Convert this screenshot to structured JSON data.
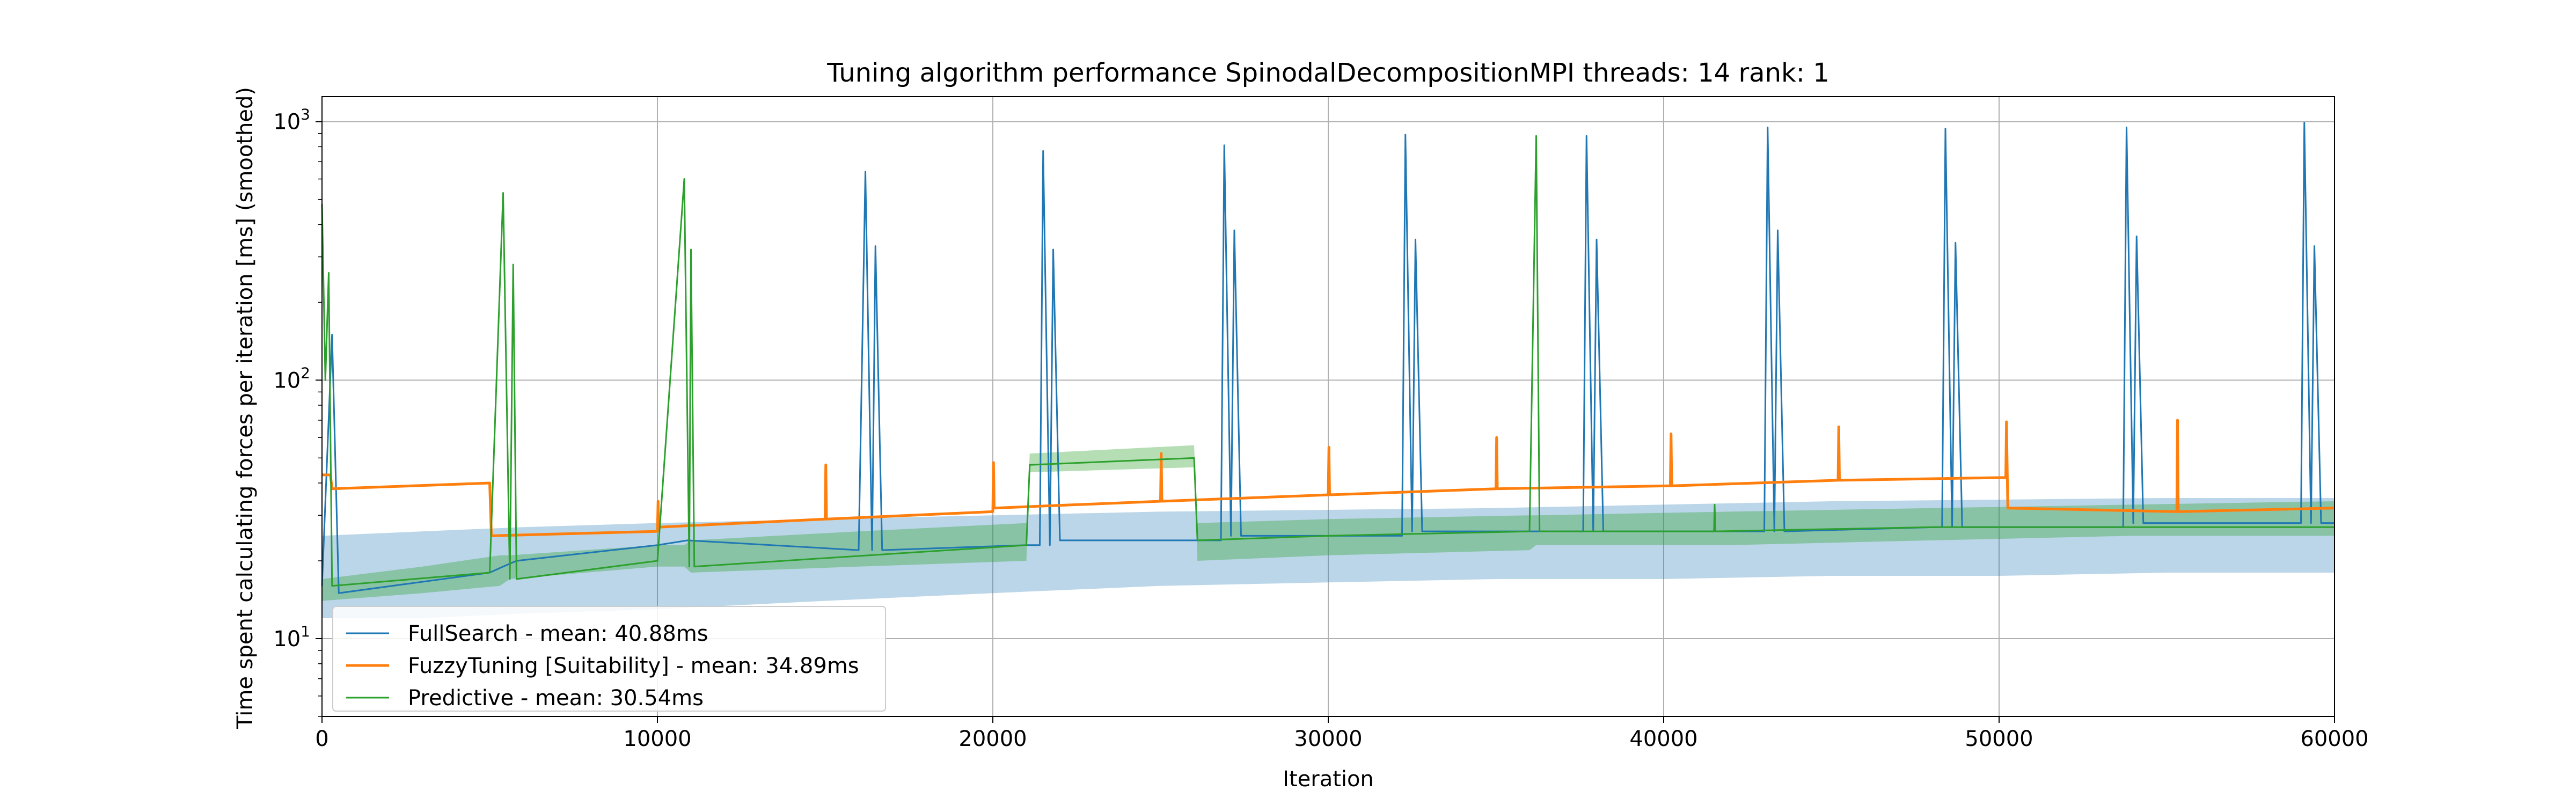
{
  "chart_data": {
    "type": "line",
    "title": "Tuning algorithm performance SpinodalDecompositionMPI threads: 14 rank: 1",
    "xlabel": "Iteration",
    "ylabel": "Time spent calculating forces per iteration [ms] (smoothed)",
    "xlim": [
      0,
      60000
    ],
    "ylim": [
      5,
      1250
    ],
    "yscale": "log",
    "grid": true,
    "legend_position": "lower-left",
    "x_ticks": [
      0,
      10000,
      20000,
      30000,
      40000,
      50000,
      60000
    ],
    "x_tick_labels": [
      "0",
      "10000",
      "20000",
      "30000",
      "40000",
      "50000",
      "60000"
    ],
    "y_ticks": [
      10,
      100,
      1000
    ],
    "y_tick_labels": [
      {
        "base": "10",
        "exp": "1"
      },
      {
        "base": "10",
        "exp": "2"
      },
      {
        "base": "10",
        "exp": "3"
      }
    ],
    "series": [
      {
        "name": "FullSearch - mean: 40.88ms",
        "color": "#1f77b4",
        "band_color": "#1f77b4",
        "band": {
          "x": [
            0,
            3000,
            6000,
            10000,
            15000,
            20000,
            25000,
            30000,
            35000,
            40000,
            45000,
            50000,
            55000,
            60000
          ],
          "low": [
            12,
            12,
            12.5,
            13,
            14,
            15,
            16,
            16.5,
            17,
            17,
            17.5,
            17.5,
            18,
            18
          ],
          "high": [
            25,
            26,
            27,
            28,
            29,
            30,
            31,
            31.5,
            32,
            33,
            34,
            34.5,
            35,
            35
          ]
        },
        "points": [
          [
            0,
            16
          ],
          [
            300,
            150
          ],
          [
            500,
            15
          ],
          [
            5000,
            18
          ],
          [
            5400,
            19
          ],
          [
            5800,
            20
          ],
          [
            10000,
            23
          ],
          [
            10900,
            24
          ],
          [
            16000,
            22
          ],
          [
            16200,
            640
          ],
          [
            16400,
            22
          ],
          [
            16500,
            330
          ],
          [
            16700,
            22
          ],
          [
            21000,
            23
          ],
          [
            21400,
            23
          ],
          [
            21500,
            770
          ],
          [
            21700,
            23
          ],
          [
            21800,
            320
          ],
          [
            22000,
            24
          ],
          [
            26500,
            24
          ],
          [
            26800,
            24
          ],
          [
            26900,
            810
          ],
          [
            27100,
            25
          ],
          [
            27200,
            380
          ],
          [
            27400,
            25
          ],
          [
            32000,
            25
          ],
          [
            32200,
            25
          ],
          [
            32300,
            890
          ],
          [
            32500,
            26
          ],
          [
            32600,
            350
          ],
          [
            32800,
            26
          ],
          [
            37400,
            26
          ],
          [
            37600,
            26
          ],
          [
            37700,
            880
          ],
          [
            37900,
            26
          ],
          [
            38000,
            350
          ],
          [
            38200,
            26
          ],
          [
            42800,
            26
          ],
          [
            43000,
            26
          ],
          [
            43100,
            950
          ],
          [
            43300,
            26
          ],
          [
            43400,
            380
          ],
          [
            43600,
            26
          ],
          [
            48100,
            27
          ],
          [
            48300,
            27
          ],
          [
            48400,
            940
          ],
          [
            48600,
            27
          ],
          [
            48700,
            340
          ],
          [
            48900,
            27
          ],
          [
            53500,
            27
          ],
          [
            53700,
            27
          ],
          [
            53800,
            950
          ],
          [
            54000,
            28
          ],
          [
            54100,
            360
          ],
          [
            54300,
            28
          ],
          [
            58800,
            28
          ],
          [
            59000,
            28
          ],
          [
            59100,
            990
          ],
          [
            59300,
            28
          ],
          [
            59400,
            330
          ],
          [
            59600,
            28
          ],
          [
            60000,
            28
          ]
        ]
      },
      {
        "name": "FuzzyTuning [Suitability] - mean: 34.89ms",
        "color": "#ff7f0e",
        "band_color": "#ff7f0e",
        "band": null,
        "points": [
          [
            0,
            43
          ],
          [
            250,
            43
          ],
          [
            300,
            38
          ],
          [
            5000,
            40
          ],
          [
            5050,
            25
          ],
          [
            10000,
            26
          ],
          [
            10020,
            34
          ],
          [
            10040,
            27
          ],
          [
            15000,
            29
          ],
          [
            15020,
            47
          ],
          [
            15040,
            29
          ],
          [
            20000,
            31
          ],
          [
            20020,
            48
          ],
          [
            20040,
            32
          ],
          [
            25000,
            34
          ],
          [
            25020,
            52
          ],
          [
            25040,
            34
          ],
          [
            30000,
            36
          ],
          [
            30020,
            55
          ],
          [
            30040,
            36
          ],
          [
            35000,
            38
          ],
          [
            35020,
            60
          ],
          [
            35040,
            38
          ],
          [
            40200,
            39
          ],
          [
            40220,
            62
          ],
          [
            40240,
            39
          ],
          [
            45200,
            41
          ],
          [
            45220,
            66
          ],
          [
            45240,
            41
          ],
          [
            50200,
            42
          ],
          [
            50220,
            69
          ],
          [
            50260,
            32
          ],
          [
            55300,
            31
          ],
          [
            55320,
            70
          ],
          [
            55340,
            31
          ],
          [
            60000,
            32
          ]
        ]
      },
      {
        "name": "Predictive - mean: 30.54ms",
        "color": "#2ca02c",
        "band_color": "#2ca02c",
        "band": {
          "x": [
            0,
            3000,
            5300,
            5600,
            10000,
            10800,
            11000,
            16000,
            21000,
            21100,
            26000,
            26100,
            30000,
            36000,
            36200,
            42000,
            48000,
            54000,
            60000
          ],
          "low": [
            14,
            15,
            16,
            17,
            19,
            19,
            18,
            19,
            20,
            44,
            46,
            20,
            21,
            22,
            23,
            23,
            24,
            25,
            25
          ],
          "high": [
            17,
            19,
            21,
            21,
            23,
            23,
            24,
            26,
            28,
            52,
            56,
            28,
            29,
            30,
            30,
            31,
            32,
            33,
            34
          ]
        },
        "points": [
          [
            0,
            480
          ],
          [
            100,
            100
          ],
          [
            200,
            260
          ],
          [
            300,
            16
          ],
          [
            5000,
            18
          ],
          [
            5400,
            530
          ],
          [
            5600,
            17
          ],
          [
            5700,
            280
          ],
          [
            5800,
            17
          ],
          [
            10000,
            20
          ],
          [
            10800,
            600
          ],
          [
            10950,
            19
          ],
          [
            11000,
            320
          ],
          [
            11100,
            19
          ],
          [
            21000,
            23
          ],
          [
            21100,
            47
          ],
          [
            26000,
            50
          ],
          [
            26100,
            24
          ],
          [
            30000,
            25
          ],
          [
            36000,
            26
          ],
          [
            36200,
            880
          ],
          [
            36300,
            26
          ],
          [
            41500,
            26
          ],
          [
            41520,
            33
          ],
          [
            41540,
            26
          ],
          [
            48000,
            27
          ],
          [
            54000,
            27
          ],
          [
            60000,
            27
          ]
        ]
      }
    ]
  }
}
